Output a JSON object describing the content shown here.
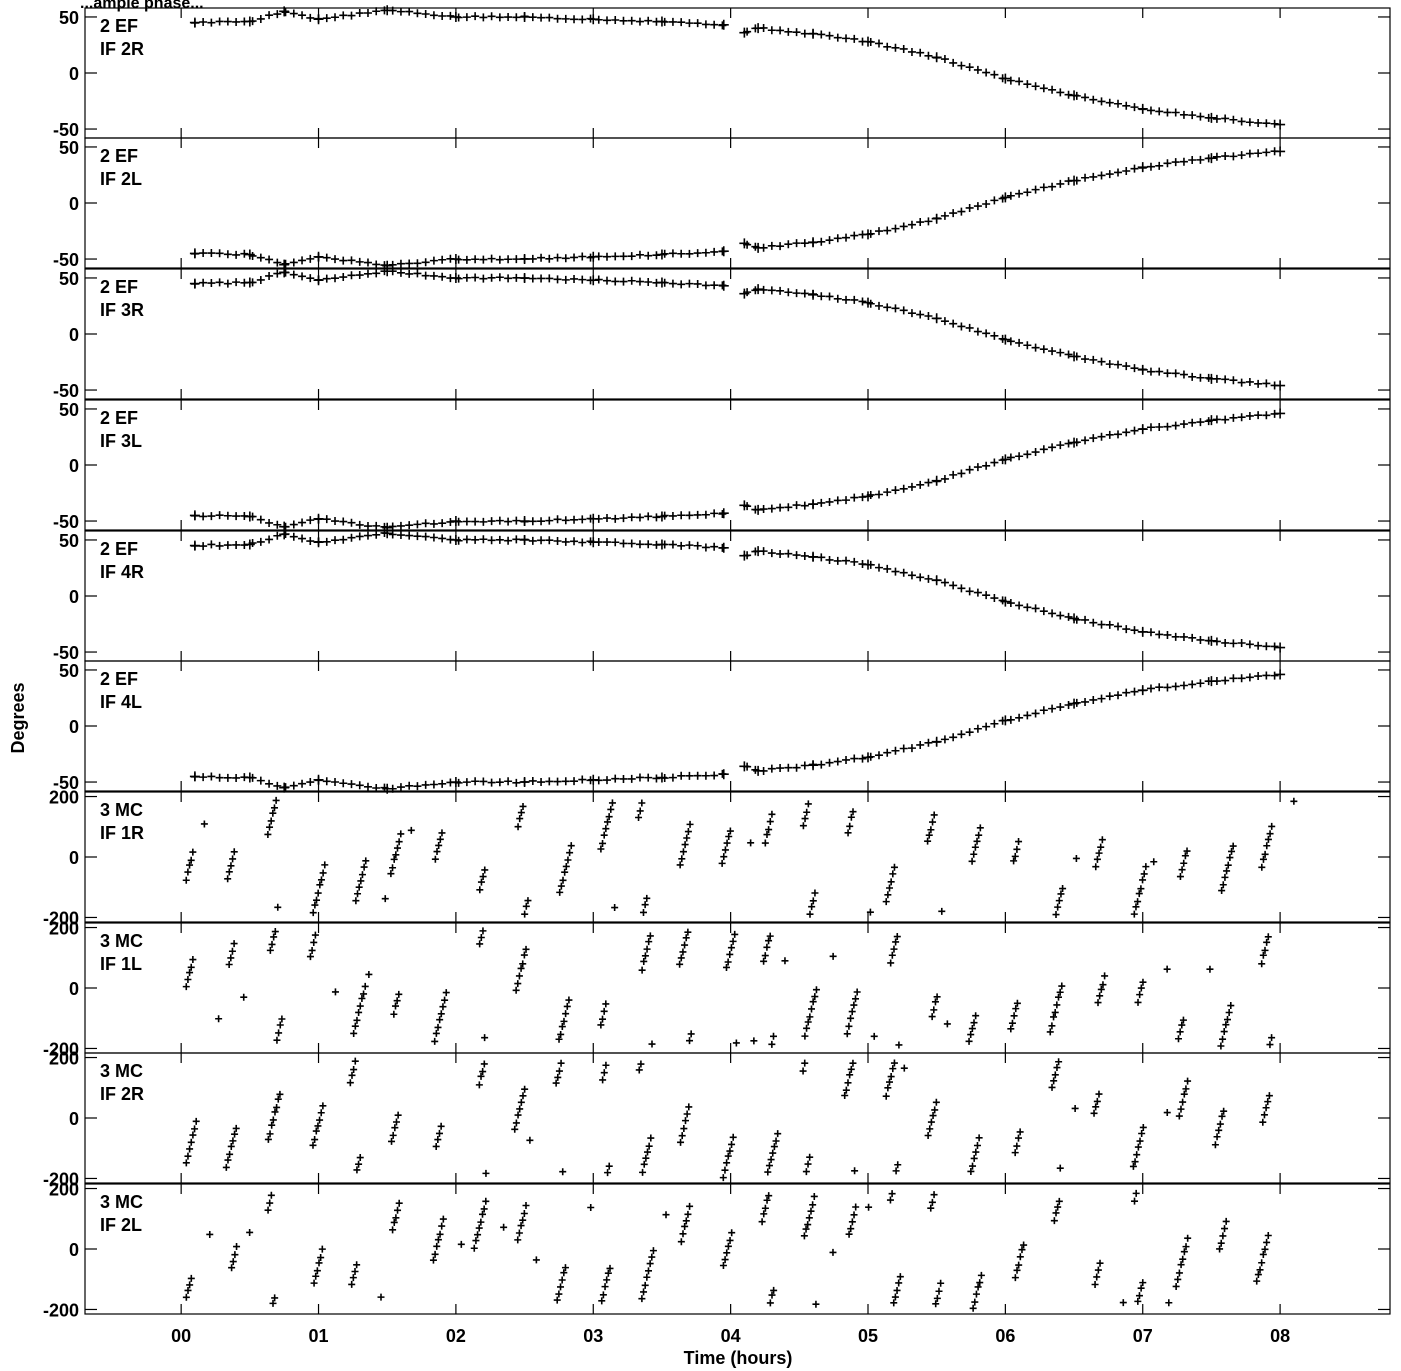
{
  "chart_data": {
    "type": "scatter",
    "title": "...ample phase...",
    "xlabel": "Time (hours)",
    "ylabel": "Degrees",
    "xlim": [
      -0.7,
      8.8
    ],
    "x_ticks": [
      "00",
      "01",
      "02",
      "03",
      "04",
      "05",
      "06",
      "07",
      "08"
    ],
    "marker": "+",
    "color": "#000000",
    "grid": false,
    "panels": [
      {
        "label_line1": "2 EF",
        "label_line2": "IF 2R",
        "ylim": [
          -58,
          58
        ],
        "ticks": [
          "50",
          "0",
          "-50"
        ],
        "pattern": "declining",
        "points": [
          [
            0.1,
            45
          ],
          [
            0.5,
            46
          ],
          [
            0.75,
            55
          ],
          [
            1.0,
            48
          ],
          [
            1.5,
            56
          ],
          [
            2.0,
            50
          ],
          [
            2.5,
            50
          ],
          [
            3.0,
            48
          ],
          [
            3.5,
            46
          ],
          [
            3.95,
            43
          ],
          [
            4.1,
            36
          ],
          [
            4.2,
            40
          ],
          [
            4.6,
            35
          ],
          [
            5.0,
            28
          ],
          [
            5.5,
            14
          ],
          [
            6.0,
            -5
          ],
          [
            6.5,
            -20
          ],
          [
            7.0,
            -32
          ],
          [
            7.5,
            -40
          ],
          [
            8.0,
            -46
          ]
        ]
      },
      {
        "label_line1": "2 EF",
        "label_line2": "IF 2L",
        "ylim": [
          -58,
          58
        ],
        "ticks": [
          "50",
          "0",
          "-50"
        ],
        "pattern": "rising",
        "points": [
          [
            0.1,
            -45
          ],
          [
            0.5,
            -46
          ],
          [
            0.75,
            -55
          ],
          [
            1.0,
            -48
          ],
          [
            1.5,
            -56
          ],
          [
            2.0,
            -50
          ],
          [
            2.5,
            -50
          ],
          [
            3.0,
            -48
          ],
          [
            3.5,
            -46
          ],
          [
            3.95,
            -43
          ],
          [
            4.1,
            -36
          ],
          [
            4.2,
            -40
          ],
          [
            4.6,
            -35
          ],
          [
            5.0,
            -28
          ],
          [
            5.5,
            -14
          ],
          [
            6.0,
            5
          ],
          [
            6.5,
            20
          ],
          [
            7.0,
            32
          ],
          [
            7.5,
            40
          ],
          [
            8.0,
            46
          ]
        ]
      },
      {
        "label_line1": "2 EF",
        "label_line2": "IF 3R",
        "ylim": [
          -58,
          58
        ],
        "ticks": [
          "50",
          "0",
          "-50"
        ],
        "pattern": "declining",
        "points": [
          [
            0.1,
            45
          ],
          [
            0.5,
            46
          ],
          [
            0.75,
            55
          ],
          [
            1.0,
            48
          ],
          [
            1.5,
            56
          ],
          [
            2.0,
            50
          ],
          [
            2.5,
            50
          ],
          [
            3.0,
            48
          ],
          [
            3.5,
            46
          ],
          [
            3.95,
            43
          ],
          [
            4.1,
            36
          ],
          [
            4.2,
            40
          ],
          [
            4.6,
            35
          ],
          [
            5.0,
            28
          ],
          [
            5.5,
            14
          ],
          [
            6.0,
            -5
          ],
          [
            6.5,
            -20
          ],
          [
            7.0,
            -32
          ],
          [
            7.5,
            -40
          ],
          [
            8.0,
            -46
          ]
        ]
      },
      {
        "label_line1": "2 EF",
        "label_line2": "IF 3L",
        "ylim": [
          -58,
          58
        ],
        "ticks": [
          "50",
          "0",
          "-50"
        ],
        "pattern": "rising",
        "points": [
          [
            0.1,
            -45
          ],
          [
            0.5,
            -46
          ],
          [
            0.75,
            -55
          ],
          [
            1.0,
            -48
          ],
          [
            1.5,
            -56
          ],
          [
            2.0,
            -50
          ],
          [
            2.5,
            -50
          ],
          [
            3.0,
            -48
          ],
          [
            3.5,
            -46
          ],
          [
            3.95,
            -43
          ],
          [
            4.1,
            -36
          ],
          [
            4.2,
            -40
          ],
          [
            4.6,
            -35
          ],
          [
            5.0,
            -28
          ],
          [
            5.5,
            -14
          ],
          [
            6.0,
            5
          ],
          [
            6.5,
            20
          ],
          [
            7.0,
            32
          ],
          [
            7.5,
            40
          ],
          [
            8.0,
            46
          ]
        ]
      },
      {
        "label_line1": "2 EF",
        "label_line2": "IF 4R",
        "ylim": [
          -58,
          58
        ],
        "ticks": [
          "50",
          "0",
          "-50"
        ],
        "pattern": "declining",
        "points": [
          [
            0.1,
            45
          ],
          [
            0.5,
            46
          ],
          [
            0.75,
            55
          ],
          [
            1.0,
            48
          ],
          [
            1.5,
            56
          ],
          [
            2.0,
            50
          ],
          [
            2.5,
            50
          ],
          [
            3.0,
            48
          ],
          [
            3.5,
            46
          ],
          [
            3.95,
            43
          ],
          [
            4.1,
            36
          ],
          [
            4.2,
            40
          ],
          [
            4.6,
            35
          ],
          [
            5.0,
            28
          ],
          [
            5.5,
            14
          ],
          [
            6.0,
            -5
          ],
          [
            6.5,
            -20
          ],
          [
            7.0,
            -32
          ],
          [
            7.5,
            -40
          ],
          [
            8.0,
            -46
          ]
        ]
      },
      {
        "label_line1": "2 EF",
        "label_line2": "IF 4L",
        "ylim": [
          -58,
          58
        ],
        "ticks": [
          "50",
          "0",
          "-50"
        ],
        "pattern": "rising",
        "points": [
          [
            0.1,
            -45
          ],
          [
            0.5,
            -46
          ],
          [
            0.75,
            -55
          ],
          [
            1.0,
            -48
          ],
          [
            1.5,
            -56
          ],
          [
            2.0,
            -50
          ],
          [
            2.5,
            -50
          ],
          [
            3.0,
            -48
          ],
          [
            3.5,
            -46
          ],
          [
            3.95,
            -43
          ],
          [
            4.1,
            -36
          ],
          [
            4.2,
            -40
          ],
          [
            4.6,
            -35
          ],
          [
            5.0,
            -28
          ],
          [
            5.5,
            -14
          ],
          [
            6.0,
            5
          ],
          [
            6.5,
            20
          ],
          [
            7.0,
            32
          ],
          [
            7.5,
            40
          ],
          [
            8.0,
            46
          ]
        ]
      },
      {
        "label_line1": "3 MC",
        "label_line2": "IF 1R",
        "ylim": [
          -215,
          215
        ],
        "ticks": [
          "200",
          "0",
          "-200"
        ],
        "pattern": "wrapping",
        "wrap_period_hours": 0.33,
        "seed": 11
      },
      {
        "label_line1": "3 MC",
        "label_line2": "IF 1L",
        "ylim": [
          -215,
          215
        ],
        "ticks": [
          "200",
          "0",
          "-200"
        ],
        "pattern": "wrapping",
        "wrap_period_hours": 0.33,
        "seed": 23
      },
      {
        "label_line1": "3 MC",
        "label_line2": "IF 2R",
        "ylim": [
          -215,
          215
        ],
        "ticks": [
          "200",
          "0",
          "-200"
        ],
        "pattern": "wrapping",
        "wrap_period_hours": 0.33,
        "seed": 37
      },
      {
        "label_line1": "3 MC",
        "label_line2": "IF 2L",
        "ylim": [
          -215,
          215
        ],
        "ticks": [
          "200",
          "0",
          "-200"
        ],
        "pattern": "wrapping",
        "wrap_period_hours": 0.33,
        "seed": 53
      }
    ]
  }
}
